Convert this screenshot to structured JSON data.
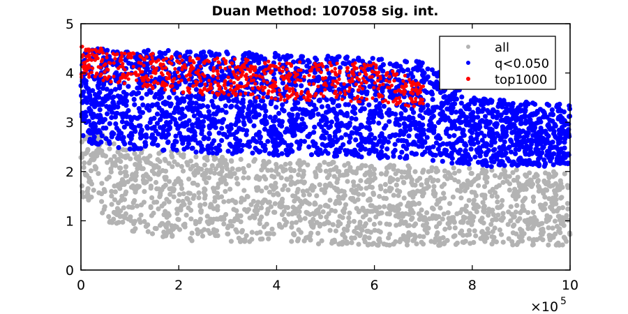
{
  "chart_data": {
    "type": "scatter",
    "title": "Duan Method: 107058 sig. int.",
    "xlabel": "",
    "ylabel": "",
    "xlim": [
      0,
      1000000
    ],
    "ylim": [
      0,
      5
    ],
    "x_ticks": [
      0,
      200000,
      400000,
      600000,
      800000,
      1000000
    ],
    "x_tick_labels": [
      "0",
      "2",
      "4",
      "6",
      "8",
      "10"
    ],
    "x_multiplier_label": "×10",
    "x_multiplier_exponent": "5",
    "y_ticks": [
      0,
      1,
      2,
      3,
      4,
      5
    ],
    "y_tick_labels": [
      "0",
      "1",
      "2",
      "3",
      "4",
      "5"
    ],
    "grid": false,
    "legend_position": "top-right",
    "series": [
      {
        "name": "all",
        "color": "#b3b3b3",
        "description_of_extent": "dense band of points",
        "lower_envelope": [
          [
            0,
            1.5
          ],
          [
            50000,
            1.0
          ],
          [
            100000,
            0.8
          ],
          [
            200000,
            0.6
          ],
          [
            400000,
            0.55
          ],
          [
            600000,
            0.5
          ],
          [
            800000,
            0.5
          ],
          [
            1000000,
            0.5
          ]
        ],
        "upper_envelope": [
          [
            0,
            3.2
          ],
          [
            50000,
            2.7
          ],
          [
            100000,
            2.5
          ],
          [
            300000,
            2.3
          ],
          [
            500000,
            2.2
          ],
          [
            700000,
            2.1
          ],
          [
            1000000,
            2.0
          ]
        ]
      },
      {
        "name": "q<0.050",
        "color": "#0000ff",
        "lower_envelope": [
          [
            0,
            2.6
          ],
          [
            100000,
            2.45
          ],
          [
            300000,
            2.35
          ],
          [
            500000,
            2.3
          ],
          [
            700000,
            2.25
          ],
          [
            800000,
            2.1
          ],
          [
            1000000,
            2.1
          ]
        ],
        "upper_envelope": [
          [
            0,
            4.5
          ],
          [
            200000,
            4.45
          ],
          [
            400000,
            4.4
          ],
          [
            600000,
            4.3
          ],
          [
            700000,
            4.25
          ],
          [
            800000,
            3.5
          ],
          [
            1000000,
            3.35
          ]
        ]
      },
      {
        "name": "top1000",
        "color": "#ff0000",
        "lower_envelope": [
          [
            0,
            3.9
          ],
          [
            200000,
            3.6
          ],
          [
            400000,
            3.45
          ],
          [
            600000,
            3.4
          ],
          [
            700000,
            3.3
          ]
        ],
        "upper_envelope": [
          [
            0,
            4.55
          ],
          [
            200000,
            4.35
          ],
          [
            400000,
            4.25
          ],
          [
            600000,
            4.2
          ],
          [
            700000,
            3.8
          ]
        ]
      }
    ]
  }
}
